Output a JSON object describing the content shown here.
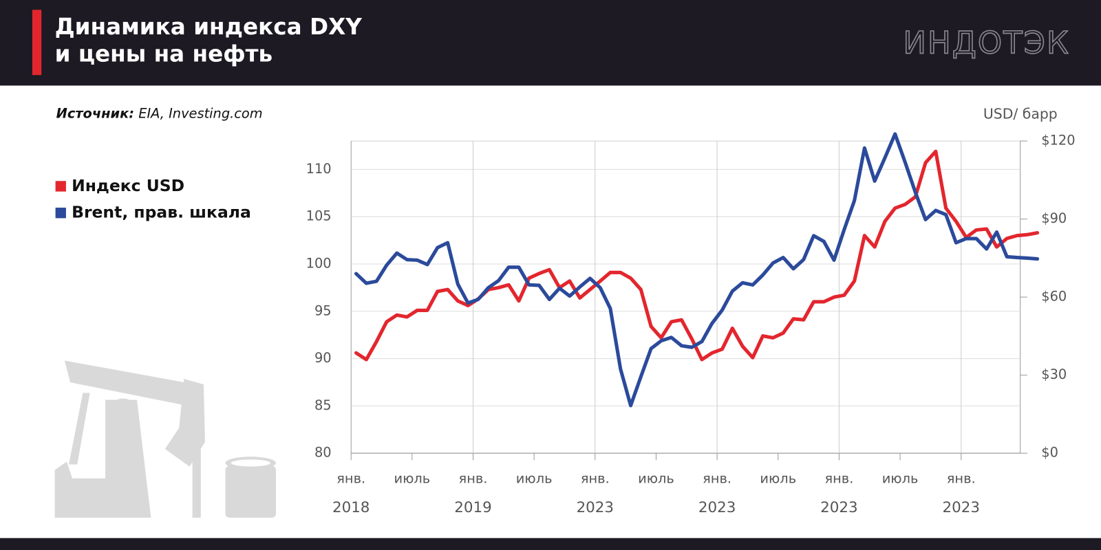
{
  "logo": "ИНДОТЭК",
  "chart_data": {
    "type": "line",
    "title": [
      "Динамика индекса DXY",
      "и цены на нефть"
    ],
    "source_label": "Источник:",
    "source": "EIA, Investing.com",
    "y2_label": "USD/ барр",
    "legend": "left",
    "grid": true,
    "categories": [
      "янв.",
      null,
      null,
      null,
      null,
      null,
      "июль",
      null,
      null,
      null,
      null,
      null,
      "янв.",
      null,
      null,
      null,
      null,
      null,
      "июль",
      null,
      null,
      null,
      null,
      null,
      "янв.",
      null,
      null,
      null,
      null,
      null,
      "июль",
      null,
      null,
      null,
      null,
      null,
      "янв.",
      null,
      null,
      null,
      null,
      null,
      "июль",
      null,
      null,
      null,
      null,
      null,
      "янв.",
      null,
      null,
      null,
      null,
      null,
      "июль",
      null,
      null,
      null,
      null,
      null,
      "янв.",
      null,
      null,
      null,
      null,
      null,
      null,
      null
    ],
    "x_group_labels": [
      "2018",
      "2019",
      "2023",
      "2023",
      "2023",
      "2023"
    ],
    "ylim": [
      80,
      113
    ],
    "yticks": [
      80,
      85,
      90,
      95,
      100,
      105,
      110
    ],
    "y2lim": [
      0,
      120
    ],
    "y2ticks": [
      {
        "value": 0,
        "label": "$0"
      },
      {
        "value": 30,
        "label": "$30"
      },
      {
        "value": 60,
        "label": "$60"
      },
      {
        "value": 90,
        "label": "$90"
      },
      {
        "value": 120,
        "label": "$120"
      }
    ],
    "series": [
      {
        "name": "Индекс USD",
        "color": "#e3262e",
        "values": [
          90.6,
          89.9,
          91.8,
          93.9,
          94.6,
          94.4,
          95.1,
          95.1,
          97.1,
          97.3,
          96.1,
          95.6,
          96.3,
          97.3,
          97.5,
          97.8,
          96.1,
          98.5,
          99.0,
          99.4,
          97.5,
          98.2,
          96.4,
          97.3,
          98.2,
          99.1,
          99.1,
          98.5,
          97.3,
          93.4,
          92.2,
          93.9,
          94.1,
          92.1,
          89.9,
          90.6,
          91.0,
          93.2,
          91.3,
          90.1,
          92.4,
          92.2,
          92.7,
          94.2,
          94.1,
          96.0,
          96.0,
          96.5,
          96.7,
          98.2,
          103.0,
          101.8,
          104.5,
          105.9,
          106.3,
          107.1,
          110.7,
          111.9,
          105.9,
          104.5,
          102.8,
          103.6,
          103.7,
          101.8,
          102.7,
          103.0,
          103.1,
          103.3
        ]
      },
      {
        "name": "Brent, прав. шкала",
        "color": "#2b4a9b",
        "axis": "y2",
        "values": [
          69.0,
          65.3,
          66.1,
          72.3,
          76.9,
          74.4,
          74.2,
          72.5,
          79.0,
          80.9,
          65.0,
          57.7,
          59.1,
          63.6,
          66.3,
          71.5,
          71.5,
          64.7,
          64.5,
          59.1,
          63.4,
          60.4,
          63.9,
          67.2,
          63.6,
          55.6,
          32.4,
          18.3,
          29.4,
          40.2,
          43.2,
          44.5,
          41.3,
          40.7,
          42.9,
          49.9,
          55.0,
          62.3,
          65.5,
          64.7,
          68.5,
          73.1,
          75.2,
          70.9,
          74.4,
          83.6,
          81.4,
          74.2,
          86.0,
          97.1,
          117.3,
          104.6,
          113.5,
          122.7,
          111.7,
          100.3,
          89.8,
          93.3,
          91.7,
          80.9,
          82.5,
          82.5,
          78.5,
          85.0,
          75.5,
          75.2,
          75.0,
          74.7
        ]
      }
    ]
  }
}
